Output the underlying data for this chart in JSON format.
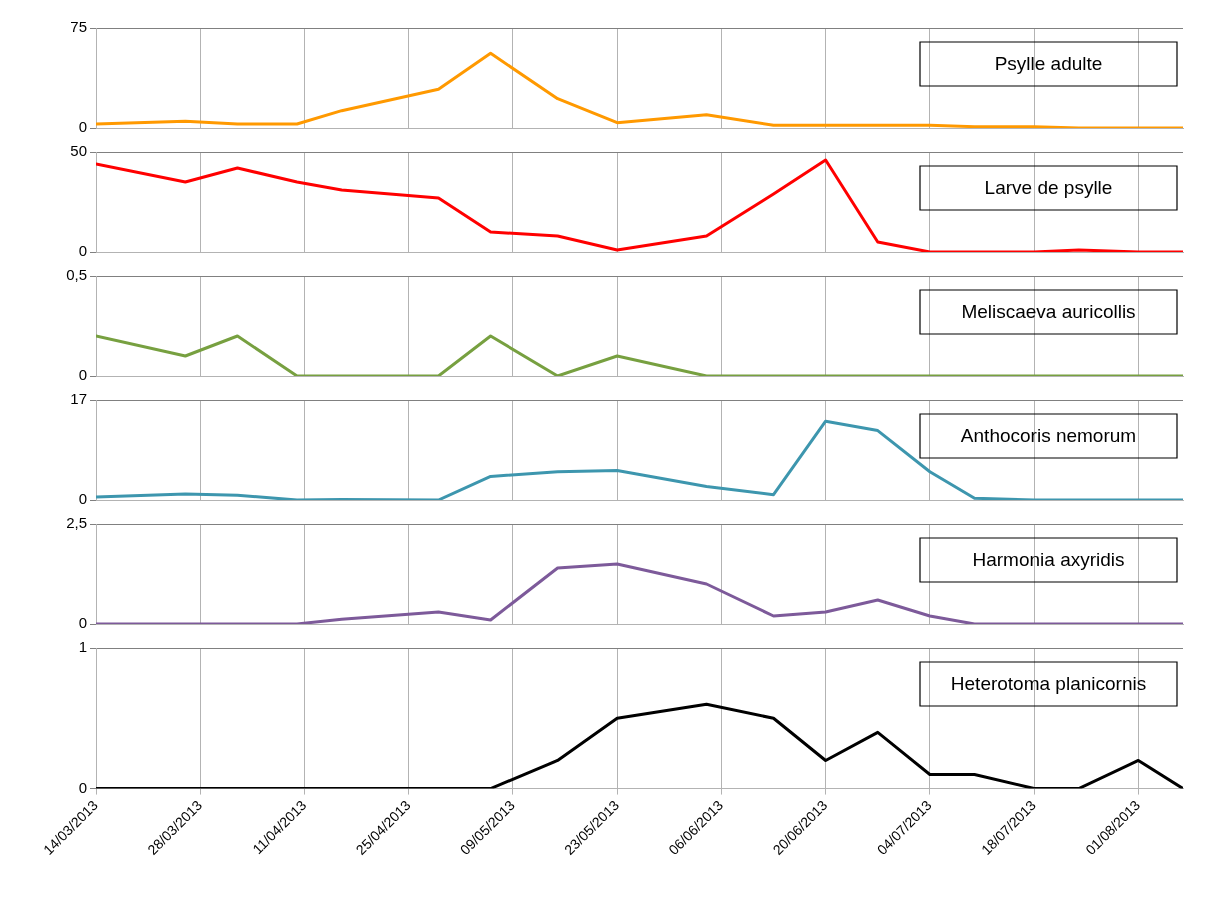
{
  "chart_data": [
    {
      "type": "line",
      "x": [
        "2013-03-14",
        "2013-03-26",
        "2013-04-02",
        "2013-04-10",
        "2013-04-16",
        "2013-04-29",
        "2013-05-06",
        "2013-05-15",
        "2013-05-23",
        "2013-06-04",
        "2013-06-13",
        "2013-06-20",
        "2013-06-27",
        "2013-07-04",
        "2013-07-10",
        "2013-07-18",
        "2013-07-24",
        "2013-08-01",
        "2013-08-07"
      ],
      "xlim": [
        "2013-03-14",
        "2013-08-07"
      ],
      "xticks": [
        {
          "value": "2013-03-14",
          "label": null
        },
        {
          "value": "2013-03-28",
          "label": null
        },
        {
          "value": "2013-04-11",
          "label": null
        },
        {
          "value": "2013-04-25",
          "label": null
        },
        {
          "value": "2013-05-09",
          "label": null
        },
        {
          "value": "2013-05-23",
          "label": null
        },
        {
          "value": "2013-06-06",
          "label": null
        },
        {
          "value": "2013-06-20",
          "label": null
        },
        {
          "value": "2013-07-04",
          "label": null
        },
        {
          "value": "2013-07-18",
          "label": null
        },
        {
          "value": "2013-08-01",
          "label": null
        }
      ],
      "ylim": [
        0,
        75
      ],
      "yticks": [
        0,
        75
      ],
      "grid": true,
      "legend": "top right",
      "marker": "none",
      "tick_labels": "y",
      "series": [
        {
          "name": "Psylle adulte",
          "color": "#ff9900",
          "values": [
            3,
            5,
            3,
            3,
            13,
            29,
            56,
            22,
            4,
            10,
            2,
            2,
            2,
            2,
            1,
            1,
            0,
            0,
            0
          ]
        }
      ]
    },
    {
      "type": "line",
      "x": [
        "2013-03-14",
        "2013-03-26",
        "2013-04-02",
        "2013-04-10",
        "2013-04-16",
        "2013-04-29",
        "2013-05-06",
        "2013-05-15",
        "2013-05-23",
        "2013-06-04",
        "2013-06-13",
        "2013-06-20",
        "2013-06-27",
        "2013-07-04",
        "2013-07-10",
        "2013-07-18",
        "2013-07-24",
        "2013-08-01",
        "2013-08-07"
      ],
      "xlim": [
        "2013-03-14",
        "2013-08-07"
      ],
      "xticks": [
        {
          "value": "2013-03-14",
          "label": null
        },
        {
          "value": "2013-03-28",
          "label": null
        },
        {
          "value": "2013-04-11",
          "label": null
        },
        {
          "value": "2013-04-25",
          "label": null
        },
        {
          "value": "2013-05-09",
          "label": null
        },
        {
          "value": "2013-05-23",
          "label": null
        },
        {
          "value": "2013-06-06",
          "label": null
        },
        {
          "value": "2013-06-20",
          "label": null
        },
        {
          "value": "2013-07-04",
          "label": null
        },
        {
          "value": "2013-07-18",
          "label": null
        },
        {
          "value": "2013-08-01",
          "label": null
        }
      ],
      "ylim": [
        0,
        50
      ],
      "yticks": [
        0,
        50
      ],
      "grid": true,
      "legend": "top right",
      "marker": "none",
      "tick_labels": "y",
      "series": [
        {
          "name": "Larve de psylle",
          "color": "#ff0000",
          "values": [
            44,
            35,
            42,
            35,
            31,
            27,
            10,
            8,
            1,
            8,
            29,
            46,
            5,
            0,
            0,
            0,
            1,
            0,
            0
          ]
        }
      ]
    },
    {
      "type": "line",
      "x": [
        "2013-03-14",
        "2013-03-26",
        "2013-04-02",
        "2013-04-10",
        "2013-04-16",
        "2013-04-29",
        "2013-05-06",
        "2013-05-15",
        "2013-05-23",
        "2013-06-04",
        "2013-06-13",
        "2013-06-20",
        "2013-06-27",
        "2013-07-04",
        "2013-07-10",
        "2013-07-18",
        "2013-07-24",
        "2013-08-01",
        "2013-08-07"
      ],
      "xlim": [
        "2013-03-14",
        "2013-08-07"
      ],
      "xticks": [
        {
          "value": "2013-03-14",
          "label": null
        },
        {
          "value": "2013-03-28",
          "label": null
        },
        {
          "value": "2013-04-11",
          "label": null
        },
        {
          "value": "2013-04-25",
          "label": null
        },
        {
          "value": "2013-05-09",
          "label": null
        },
        {
          "value": "2013-05-23",
          "label": null
        },
        {
          "value": "2013-06-06",
          "label": null
        },
        {
          "value": "2013-06-20",
          "label": null
        },
        {
          "value": "2013-07-04",
          "label": null
        },
        {
          "value": "2013-07-18",
          "label": null
        },
        {
          "value": "2013-08-01",
          "label": null
        }
      ],
      "ylim": [
        0,
        0.5
      ],
      "yticks": [
        0,
        {
          "value": 0.5,
          "label": "0,5"
        }
      ],
      "grid": true,
      "legend": "top right",
      "marker": "none",
      "tick_labels": "y",
      "series": [
        {
          "name": "Meliscaeva auricollis",
          "color": "#77a040",
          "values": [
            0.2,
            0.1,
            0.2,
            0,
            0,
            0,
            0.2,
            0,
            0.1,
            0,
            0,
            0,
            0,
            0,
            0,
            0,
            0,
            0,
            0
          ]
        }
      ]
    },
    {
      "type": "line",
      "x": [
        "2013-03-14",
        "2013-03-26",
        "2013-04-02",
        "2013-04-10",
        "2013-04-16",
        "2013-04-29",
        "2013-05-06",
        "2013-05-15",
        "2013-05-23",
        "2013-06-04",
        "2013-06-13",
        "2013-06-20",
        "2013-06-27",
        "2013-07-04",
        "2013-07-10",
        "2013-07-18",
        "2013-07-24",
        "2013-08-01",
        "2013-08-07"
      ],
      "xlim": [
        "2013-03-14",
        "2013-08-07"
      ],
      "xticks": [
        {
          "value": "2013-03-14",
          "label": null
        },
        {
          "value": "2013-03-28",
          "label": null
        },
        {
          "value": "2013-04-11",
          "label": null
        },
        {
          "value": "2013-04-25",
          "label": null
        },
        {
          "value": "2013-05-09",
          "label": null
        },
        {
          "value": "2013-05-23",
          "label": null
        },
        {
          "value": "2013-06-06",
          "label": null
        },
        {
          "value": "2013-06-20",
          "label": null
        },
        {
          "value": "2013-07-04",
          "label": null
        },
        {
          "value": "2013-07-18",
          "label": null
        },
        {
          "value": "2013-08-01",
          "label": null
        }
      ],
      "ylim": [
        0,
        17
      ],
      "yticks": [
        0,
        17
      ],
      "grid": true,
      "legend": "top right",
      "marker": "none",
      "tick_labels": "y",
      "series": [
        {
          "name": "Anthocoris nemorum",
          "color": "#3d96ae",
          "values": [
            0.5,
            1,
            0.8,
            0,
            0.1,
            0,
            4,
            4.8,
            5,
            2.3,
            0.9,
            13.4,
            11.8,
            4.8,
            0.3,
            0,
            0,
            0,
            0
          ]
        }
      ]
    },
    {
      "type": "line",
      "x": [
        "2013-03-14",
        "2013-03-26",
        "2013-04-02",
        "2013-04-10",
        "2013-04-16",
        "2013-04-29",
        "2013-05-06",
        "2013-05-15",
        "2013-05-23",
        "2013-06-04",
        "2013-06-13",
        "2013-06-20",
        "2013-06-27",
        "2013-07-04",
        "2013-07-10",
        "2013-07-18",
        "2013-07-24",
        "2013-08-01",
        "2013-08-07"
      ],
      "xlim": [
        "2013-03-14",
        "2013-08-07"
      ],
      "xticks": [
        {
          "value": "2013-03-14",
          "label": null
        },
        {
          "value": "2013-03-28",
          "label": null
        },
        {
          "value": "2013-04-11",
          "label": null
        },
        {
          "value": "2013-04-25",
          "label": null
        },
        {
          "value": "2013-05-09",
          "label": null
        },
        {
          "value": "2013-05-23",
          "label": null
        },
        {
          "value": "2013-06-06",
          "label": null
        },
        {
          "value": "2013-06-20",
          "label": null
        },
        {
          "value": "2013-07-04",
          "label": null
        },
        {
          "value": "2013-07-18",
          "label": null
        },
        {
          "value": "2013-08-01",
          "label": null
        }
      ],
      "ylim": [
        0,
        2.5
      ],
      "yticks": [
        0,
        {
          "value": 2.5,
          "label": "2,5"
        }
      ],
      "grid": true,
      "legend": "top right",
      "marker": "none",
      "tick_labels": "y",
      "series": [
        {
          "name": "Harmonia axyridis",
          "color": "#7d5a9a",
          "values": [
            0,
            0,
            0,
            0,
            0.12,
            0.3,
            0.1,
            1.4,
            1.5,
            1,
            0.2,
            0.3,
            0.6,
            0.2,
            0,
            0,
            0,
            0,
            0
          ]
        }
      ]
    },
    {
      "type": "line",
      "x": [
        "2013-03-14",
        "2013-03-26",
        "2013-04-02",
        "2013-04-10",
        "2013-04-16",
        "2013-04-29",
        "2013-05-06",
        "2013-05-15",
        "2013-05-23",
        "2013-06-04",
        "2013-06-13",
        "2013-06-20",
        "2013-06-27",
        "2013-07-04",
        "2013-07-10",
        "2013-07-18",
        "2013-07-24",
        "2013-08-01",
        "2013-08-07"
      ],
      "xlim": [
        "2013-03-14",
        "2013-08-07"
      ],
      "xticks": [
        {
          "value": "2013-03-14",
          "label": "14/03/2013"
        },
        {
          "value": "2013-03-28",
          "label": "28/03/2013"
        },
        {
          "value": "2013-04-11",
          "label": "11/04/2013"
        },
        {
          "value": "2013-04-25",
          "label": "25/04/2013"
        },
        {
          "value": "2013-05-09",
          "label": "09/05/2013"
        },
        {
          "value": "2013-05-23",
          "label": "23/05/2013"
        },
        {
          "value": "2013-06-06",
          "label": "06/06/2013"
        },
        {
          "value": "2013-06-20",
          "label": "20/06/2013"
        },
        {
          "value": "2013-07-04",
          "label": "04/07/2013"
        },
        {
          "value": "2013-07-18",
          "label": "18/07/2013"
        },
        {
          "value": "2013-08-01",
          "label": "01/08/2013"
        }
      ],
      "ylim": [
        0,
        1
      ],
      "yticks": [
        0,
        1
      ],
      "grid": true,
      "legend": "top right",
      "marker": "none",
      "series": [
        {
          "name": "Heterotoma planicornis",
          "color": "#000000",
          "values": [
            0,
            0,
            0,
            0,
            0,
            0,
            0,
            0.2,
            0.5,
            0.6,
            0.5,
            0.2,
            0.4,
            0.1,
            0.1,
            0,
            0,
            0.2,
            0
          ]
        }
      ]
    }
  ]
}
